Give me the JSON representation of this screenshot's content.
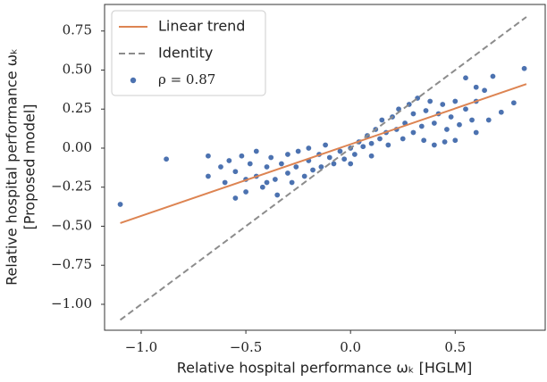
{
  "chart_data": {
    "type": "scatter",
    "x_label": "Relative hospital performance ωₖ [HGLM]",
    "y_label": [
      "Relative hospital performance ωₖ",
      "[Proposed model]"
    ],
    "xlim": [
      -1.175,
      0.93
    ],
    "ylim": [
      -1.166,
      0.92
    ],
    "xticks": [
      {
        "value": -1.0,
        "label": "−1.0"
      },
      {
        "value": -0.5,
        "label": "−0.5"
      },
      {
        "value": 0.0,
        "label": "0.0"
      },
      {
        "value": 0.5,
        "label": "0.5"
      }
    ],
    "yticks": [
      {
        "value": -1.0,
        "label": "−1.00"
      },
      {
        "value": -0.75,
        "label": "−0.75"
      },
      {
        "value": -0.5,
        "label": "−0.50"
      },
      {
        "value": -0.25,
        "label": "−0.25"
      },
      {
        "value": 0.0,
        "label": "0.00"
      },
      {
        "value": 0.25,
        "label": "0.25"
      },
      {
        "value": 0.5,
        "label": "0.50"
      },
      {
        "value": 0.75,
        "label": "0.75"
      }
    ],
    "grid": false,
    "legend": "upper-left",
    "series": [
      {
        "name": "Linear trend",
        "style": "line",
        "color": "#dd8452",
        "x": [
          -1.1,
          0.84
        ],
        "values": [
          -0.48,
          0.41
        ]
      },
      {
        "name": "Identity",
        "style": "dashed",
        "color": "#8c8c8c",
        "x": [
          -1.1,
          0.84
        ],
        "values": [
          -1.1,
          0.84
        ]
      },
      {
        "name": "ρ = 0.87",
        "style": "points",
        "color": "#4c72b0",
        "x": [
          -1.1,
          -0.88,
          -0.68,
          -0.68,
          -0.55,
          0.83,
          0.78,
          0.68,
          0.66,
          0.72,
          0.64,
          0.6,
          0.55,
          0.6,
          0.5,
          0.45,
          -0.62,
          -0.6,
          -0.58,
          -0.55,
          -0.52,
          -0.5,
          -0.5,
          -0.48,
          -0.45,
          -0.45,
          -0.42,
          -0.4,
          -0.38,
          -0.36,
          -0.35,
          -0.33,
          -0.3,
          -0.3,
          -0.28,
          -0.26,
          -0.25,
          -0.22,
          -0.2,
          -0.18,
          -0.15,
          -0.14,
          -0.1,
          -0.08,
          -0.05,
          -0.03,
          0.0,
          0.02,
          0.04,
          0.06,
          0.08,
          0.1,
          0.12,
          0.14,
          0.15,
          0.17,
          0.18,
          0.2,
          0.22,
          0.23,
          0.25,
          0.26,
          0.28,
          0.3,
          0.3,
          0.32,
          0.34,
          0.35,
          0.36,
          0.38,
          0.4,
          0.4,
          0.42,
          0.44,
          0.46,
          0.48,
          0.5,
          0.52,
          0.55,
          0.58,
          0.6,
          -0.12,
          -0.2,
          0.0,
          0.1,
          -0.4
        ],
        "values": [
          -0.36,
          -0.07,
          -0.05,
          -0.18,
          -0.32,
          0.51,
          0.29,
          0.46,
          0.18,
          0.23,
          0.37,
          0.39,
          0.45,
          0.1,
          0.05,
          0.04,
          -0.12,
          -0.22,
          -0.08,
          -0.15,
          -0.05,
          -0.2,
          -0.28,
          -0.1,
          -0.02,
          -0.18,
          -0.25,
          -0.12,
          -0.06,
          -0.2,
          -0.3,
          -0.1,
          -0.16,
          -0.04,
          -0.22,
          -0.12,
          -0.02,
          -0.18,
          -0.08,
          -0.14,
          -0.04,
          -0.12,
          -0.06,
          -0.1,
          -0.02,
          -0.07,
          0.0,
          -0.04,
          0.04,
          0.01,
          0.08,
          0.03,
          0.12,
          0.06,
          0.18,
          0.1,
          0.02,
          0.2,
          0.12,
          0.25,
          0.06,
          0.16,
          0.28,
          0.1,
          0.22,
          0.32,
          0.14,
          0.05,
          0.24,
          0.3,
          0.16,
          0.02,
          0.22,
          0.28,
          0.12,
          0.2,
          0.3,
          0.15,
          0.25,
          0.18,
          0.3,
          0.02,
          0.0,
          -0.1,
          -0.05,
          -0.22
        ]
      }
    ]
  }
}
